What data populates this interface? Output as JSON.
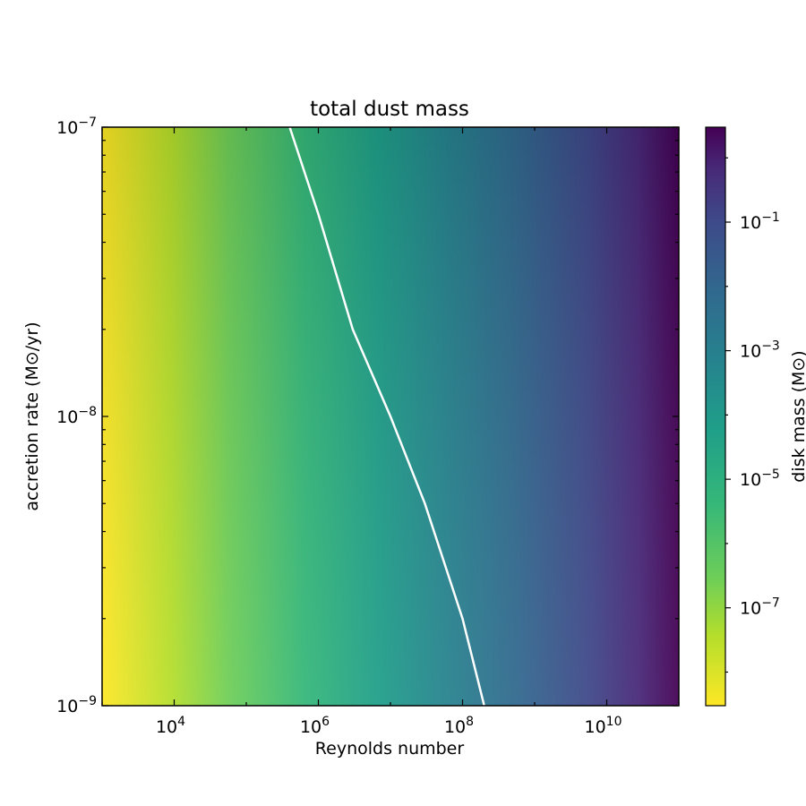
{
  "chart_data": {
    "type": "heatmap",
    "title": "total dust mass",
    "xlabel": "Reynolds number",
    "ylabel": "accretion rate (M⊙/yr)",
    "xscale": "log",
    "yscale": "log",
    "xlim": [
      1000,
      100000000000
    ],
    "ylim": [
      1e-09,
      1e-07
    ],
    "x_ticks": [
      {
        "value": 10000,
        "label_base": "10",
        "label_exp": "4"
      },
      {
        "value": 1000000,
        "label_base": "10",
        "label_exp": "6"
      },
      {
        "value": 100000000,
        "label_base": "10",
        "label_exp": "8"
      },
      {
        "value": 10000000000,
        "label_base": "10",
        "label_exp": "10"
      }
    ],
    "y_ticks": [
      {
        "value": 1e-09,
        "label_base": "10",
        "label_exp": "−9"
      },
      {
        "value": 1e-08,
        "label_base": "10",
        "label_exp": "−8"
      },
      {
        "value": 1e-07,
        "label_base": "10",
        "label_exp": "−7"
      }
    ],
    "colorbar": {
      "label": "disk mass (M⊙)",
      "scale": "log",
      "colormap": "viridis_r",
      "range": [
        3e-09,
        3
      ],
      "ticks": [
        {
          "value": 1e-07,
          "label_base": "10",
          "label_exp": "−7"
        },
        {
          "value": 1e-05,
          "label_base": "10",
          "label_exp": "−5"
        },
        {
          "value": 0.001,
          "label_base": "10",
          "label_exp": "−3"
        },
        {
          "value": 0.1,
          "label_base": "10",
          "label_exp": "−1"
        }
      ]
    },
    "contour": {
      "color": "#ffffff",
      "points": [
        {
          "re": 200000000,
          "mdot": 1e-09
        },
        {
          "re": 100000000,
          "mdot": 2e-09
        },
        {
          "re": 30000000,
          "mdot": 5e-09
        },
        {
          "re": 10000000,
          "mdot": 1e-08
        },
        {
          "re": 3000000,
          "mdot": 2e-08
        },
        {
          "re": 1000000,
          "mdot": 5e-08
        },
        {
          "re": 400000,
          "mdot": 1e-07
        }
      ]
    }
  }
}
